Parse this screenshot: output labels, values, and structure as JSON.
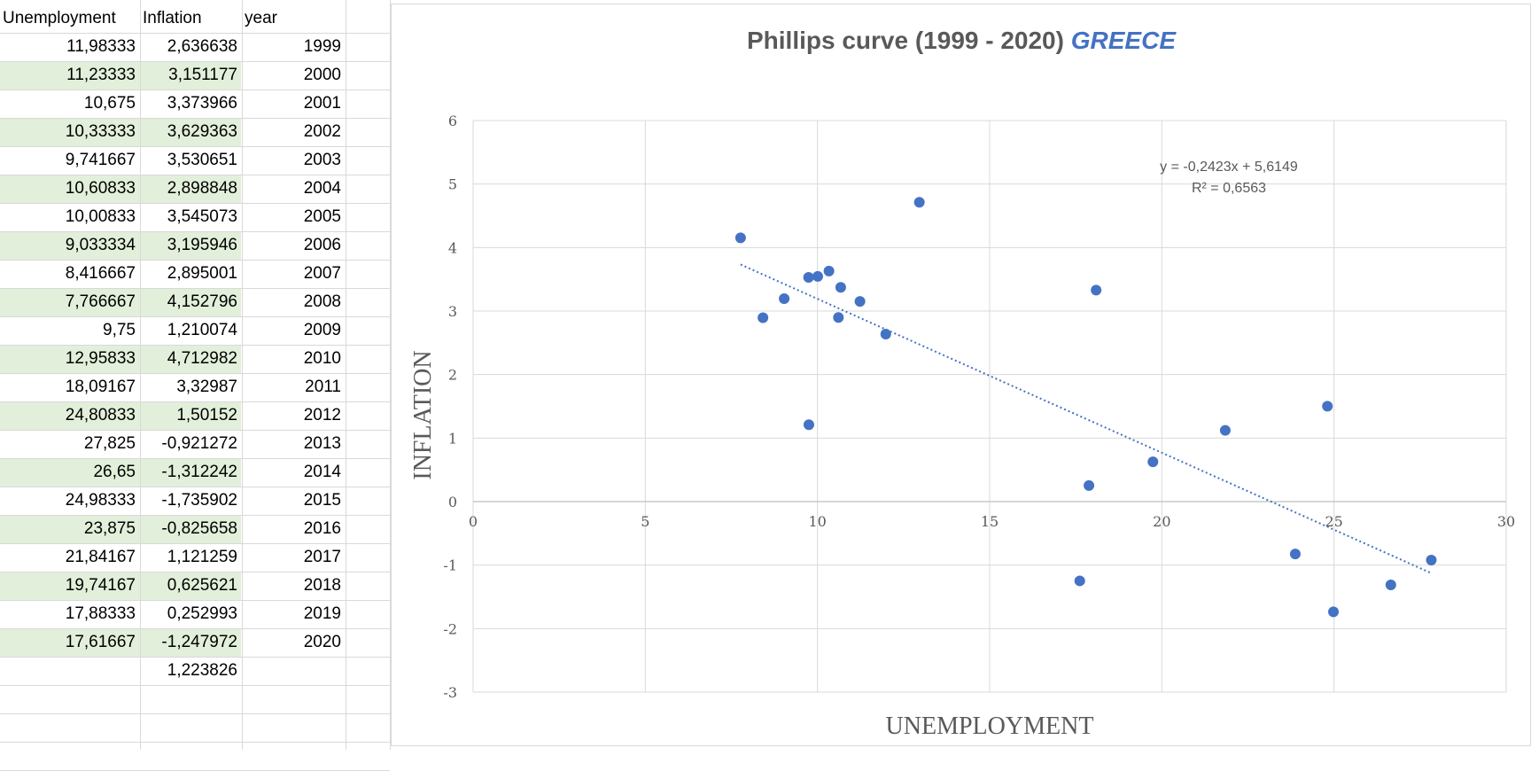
{
  "sheet": {
    "headers": [
      "Unemployment",
      "Inflation",
      "year"
    ],
    "rows": [
      [
        "11,98333",
        "2,636638",
        "1999"
      ],
      [
        "11,23333",
        "3,151177",
        "2000"
      ],
      [
        "10,675",
        "3,373966",
        "2001"
      ],
      [
        "10,33333",
        "3,629363",
        "2002"
      ],
      [
        "9,741667",
        "3,530651",
        "2003"
      ],
      [
        "10,60833",
        "2,898848",
        "2004"
      ],
      [
        "10,00833",
        "3,545073",
        "2005"
      ],
      [
        "9,033334",
        "3,195946",
        "2006"
      ],
      [
        "8,416667",
        "2,895001",
        "2007"
      ],
      [
        "7,766667",
        "4,152796",
        "2008"
      ],
      [
        "9,75",
        "1,210074",
        "2009"
      ],
      [
        "12,95833",
        "4,712982",
        "2010"
      ],
      [
        "18,09167",
        "3,32987",
        "2011"
      ],
      [
        "24,80833",
        "1,50152",
        "2012"
      ],
      [
        "27,825",
        "-0,921272",
        "2013"
      ],
      [
        "26,65",
        "-1,312242",
        "2014"
      ],
      [
        "24,98333",
        "-1,735902",
        "2015"
      ],
      [
        "23,875",
        "-0,825658",
        "2016"
      ],
      [
        "21,84167",
        "1,121259",
        "2017"
      ],
      [
        "19,74167",
        "0,625621",
        "2018"
      ],
      [
        "17,88333",
        "0,252993",
        "2019"
      ],
      [
        "17,61667",
        "-1,247972",
        "2020"
      ]
    ],
    "extra_value": "1,223826"
  },
  "chart_data": {
    "type": "scatter",
    "title": "Phillips curve (1999 - 2020)",
    "title_highlight": "GREECE",
    "xlabel": "UNEMPLOYMENT",
    "ylabel": "INFLATION",
    "xlim": [
      0,
      30
    ],
    "ylim": [
      -3,
      6
    ],
    "xticks": [
      0,
      5,
      10,
      15,
      20,
      25,
      30
    ],
    "yticks": [
      -3,
      -2,
      -1,
      0,
      1,
      2,
      3,
      4,
      5,
      6
    ],
    "grid": true,
    "x": [
      11.98333,
      11.23333,
      10.675,
      10.33333,
      9.741667,
      10.60833,
      10.00833,
      9.033334,
      8.416667,
      7.766667,
      9.75,
      12.95833,
      18.09167,
      24.80833,
      27.825,
      26.65,
      24.98333,
      23.875,
      21.84167,
      19.74167,
      17.88333,
      17.61667
    ],
    "y": [
      2.636638,
      3.151177,
      3.373966,
      3.629363,
      3.530651,
      2.898848,
      3.545073,
      3.195946,
      2.895001,
      4.152796,
      1.210074,
      4.712982,
      3.32987,
      1.50152,
      -0.921272,
      -1.312242,
      -1.735902,
      -0.825658,
      1.121259,
      0.625621,
      0.252993,
      -1.247972
    ],
    "trendline": {
      "type": "linear",
      "slope": -0.2423,
      "intercept": 5.6149,
      "equation": "y = -0,2423x + 5,6149",
      "r_squared": "R² = 0,6563"
    }
  },
  "colors": {
    "marker": "#4472c4",
    "title": "#595959",
    "title_highlight": "#4472c4",
    "grid": "#d9d9d9",
    "band": "#e2efda"
  }
}
